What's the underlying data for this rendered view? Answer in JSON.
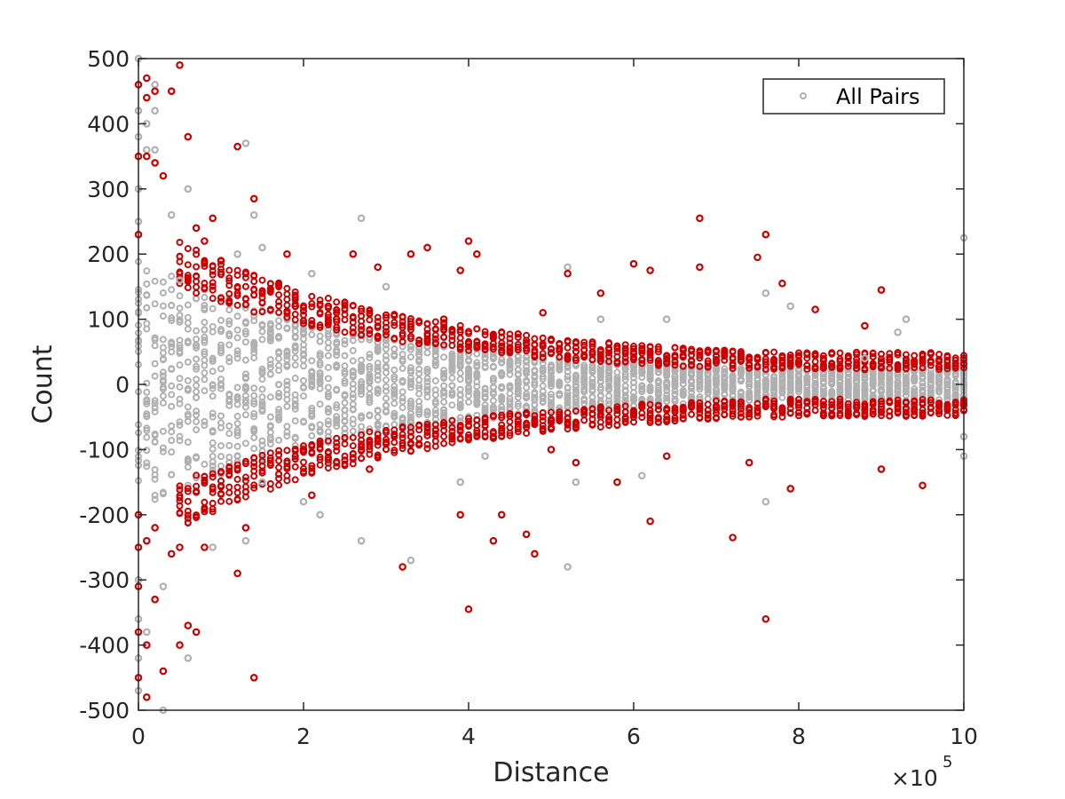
{
  "chart_data": {
    "type": "scatter",
    "title": "",
    "xlabel": "Distance",
    "ylabel": "Count",
    "x_exponent_label": "×10",
    "x_exponent_power": "5",
    "x_tick_labels": [
      "0",
      "2",
      "4",
      "6",
      "8",
      "10"
    ],
    "y_tick_labels": [
      "-500",
      "-400",
      "-300",
      "-200",
      "-100",
      "0",
      "100",
      "200",
      "300",
      "400",
      "500"
    ],
    "xlim": [
      0,
      1000000
    ],
    "ylim": [
      -500,
      500
    ],
    "x_tick_values": [
      0,
      200000,
      400000,
      600000,
      800000,
      1000000
    ],
    "y_tick_values": [
      -500,
      -400,
      -300,
      -200,
      -100,
      0,
      100,
      200,
      300,
      400,
      500
    ],
    "grid": false,
    "legend_position": "top-right",
    "legend_entries": [
      "All Pairs"
    ],
    "colors": {
      "all_pairs": "#b0b0b0",
      "highlight": "#cc0000",
      "axis": "#262626"
    },
    "series": [
      {
        "name": "All Pairs",
        "color": "#b0b0b0",
        "points": [
          [
            0,
            500
          ],
          [
            0,
            460
          ],
          [
            0,
            420
          ],
          [
            0,
            380
          ],
          [
            0,
            300
          ],
          [
            0,
            250
          ],
          [
            0,
            -300
          ],
          [
            0,
            -360
          ],
          [
            0,
            -420
          ],
          [
            0,
            -470
          ],
          [
            10000,
            400
          ],
          [
            10000,
            360
          ],
          [
            10000,
            -380
          ],
          [
            20000,
            460
          ],
          [
            20000,
            420
          ],
          [
            20000,
            360
          ],
          [
            20000,
            -330
          ],
          [
            30000,
            -500
          ],
          [
            30000,
            -310
          ],
          [
            40000,
            260
          ],
          [
            50000,
            160
          ],
          [
            60000,
            300
          ],
          [
            60000,
            -420
          ],
          [
            90000,
            -250
          ],
          [
            120000,
            200
          ],
          [
            130000,
            370
          ],
          [
            130000,
            -240
          ],
          [
            140000,
            260
          ],
          [
            150000,
            210
          ],
          [
            150000,
            -150
          ],
          [
            200000,
            -180
          ],
          [
            210000,
            170
          ],
          [
            220000,
            -200
          ],
          [
            270000,
            255
          ],
          [
            270000,
            -240
          ],
          [
            300000,
            150
          ],
          [
            330000,
            -270
          ],
          [
            390000,
            -150
          ],
          [
            420000,
            -110
          ],
          [
            520000,
            180
          ],
          [
            520000,
            -280
          ],
          [
            530000,
            -150
          ],
          [
            560000,
            100
          ],
          [
            610000,
            -140
          ],
          [
            640000,
            100
          ],
          [
            760000,
            140
          ],
          [
            760000,
            -180
          ],
          [
            790000,
            120
          ],
          [
            880000,
            40
          ],
          [
            920000,
            80
          ],
          [
            930000,
            100
          ],
          [
            1000000,
            225
          ],
          [
            1000000,
            -80
          ],
          [
            1000000,
            -110
          ]
        ]
      },
      {
        "name": "",
        "color": "#cc0000",
        "points": [
          [
            0,
            460
          ],
          [
            0,
            350
          ],
          [
            0,
            230
          ],
          [
            0,
            -200
          ],
          [
            0,
            -250
          ],
          [
            0,
            -310
          ],
          [
            0,
            -380
          ],
          [
            0,
            -450
          ],
          [
            10000,
            470
          ],
          [
            10000,
            440
          ],
          [
            10000,
            350
          ],
          [
            10000,
            -240
          ],
          [
            10000,
            -400
          ],
          [
            10000,
            -480
          ],
          [
            20000,
            450
          ],
          [
            20000,
            340
          ],
          [
            20000,
            -330
          ],
          [
            20000,
            -220
          ],
          [
            30000,
            320
          ],
          [
            30000,
            -440
          ],
          [
            40000,
            450
          ],
          [
            40000,
            -260
          ],
          [
            50000,
            490
          ],
          [
            50000,
            -250
          ],
          [
            50000,
            -400
          ],
          [
            60000,
            380
          ],
          [
            60000,
            -370
          ],
          [
            70000,
            240
          ],
          [
            70000,
            -380
          ],
          [
            80000,
            220
          ],
          [
            80000,
            -250
          ],
          [
            90000,
            255
          ],
          [
            100000,
            190
          ],
          [
            120000,
            365
          ],
          [
            120000,
            -290
          ],
          [
            130000,
            -220
          ],
          [
            140000,
            285
          ],
          [
            140000,
            -450
          ],
          [
            180000,
            200
          ],
          [
            190000,
            120
          ],
          [
            200000,
            -100
          ],
          [
            210000,
            -170
          ],
          [
            230000,
            120
          ],
          [
            240000,
            100
          ],
          [
            260000,
            200
          ],
          [
            280000,
            -130
          ],
          [
            290000,
            180
          ],
          [
            320000,
            -280
          ],
          [
            330000,
            200
          ],
          [
            350000,
            210
          ],
          [
            370000,
            100
          ],
          [
            390000,
            175
          ],
          [
            390000,
            -200
          ],
          [
            400000,
            220
          ],
          [
            400000,
            -345
          ],
          [
            410000,
            200
          ],
          [
            430000,
            -240
          ],
          [
            440000,
            -200
          ],
          [
            470000,
            -230
          ],
          [
            480000,
            -260
          ],
          [
            490000,
            110
          ],
          [
            500000,
            -100
          ],
          [
            520000,
            170
          ],
          [
            530000,
            -120
          ],
          [
            560000,
            140
          ],
          [
            580000,
            -150
          ],
          [
            600000,
            185
          ],
          [
            620000,
            -210
          ],
          [
            620000,
            175
          ],
          [
            640000,
            -110
          ],
          [
            680000,
            255
          ],
          [
            680000,
            180
          ],
          [
            720000,
            -235
          ],
          [
            740000,
            -120
          ],
          [
            750000,
            195
          ],
          [
            760000,
            230
          ],
          [
            760000,
            -360
          ],
          [
            780000,
            155
          ],
          [
            790000,
            -160
          ],
          [
            820000,
            115
          ],
          [
            880000,
            90
          ],
          [
            900000,
            145
          ],
          [
            900000,
            -130
          ],
          [
            950000,
            -155
          ]
        ]
      }
    ]
  }
}
